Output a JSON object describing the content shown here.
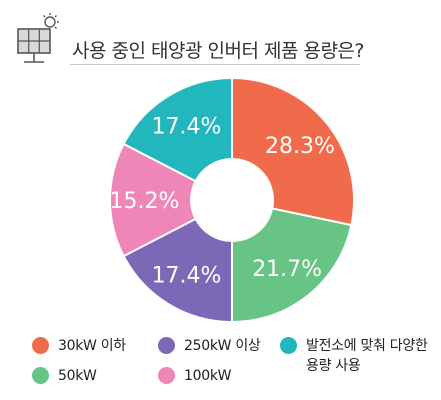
{
  "header": {
    "title": "사용 중인 태양광 인버터 제품 용량은?",
    "icon": "solar-panel-icon"
  },
  "chart_data": {
    "type": "pie",
    "variant": "donut",
    "title": "사용 중인 태양광 인버터 제품 용량은?",
    "unit": "%",
    "categories": [
      "30kW 이하",
      "50kW",
      "250kW 이상",
      "100kW",
      "발전소에 맞춰 다양한 용량 사용"
    ],
    "values": [
      28.3,
      21.7,
      17.4,
      15.2,
      17.4
    ],
    "value_labels": [
      "28.3%",
      "21.7%",
      "17.4%",
      "15.2%",
      "17.4%"
    ],
    "colors": [
      "#ef6b4c",
      "#67c485",
      "#7b68b6",
      "#ee86b8",
      "#22b6bd"
    ],
    "legend_placement": "bottom"
  }
}
